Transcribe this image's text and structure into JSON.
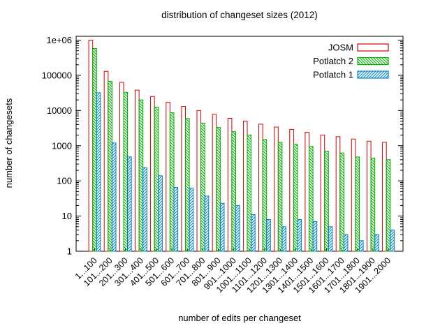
{
  "chart_data": {
    "type": "bar",
    "title": "distribution of changeset sizes (2012)",
    "xlabel": "number of edits per changeset",
    "ylabel": "number of changesets",
    "y_scale": "log",
    "ylim": [
      1,
      1000000
    ],
    "y_ticks": [
      "1",
      "10",
      "100",
      "1000",
      "10000",
      "100000",
      "1e+06"
    ],
    "grid": "off",
    "legend_position": "top-right-inside",
    "categories": [
      "1...100",
      "101...200",
      "201...300",
      "301...400",
      "401...500",
      "501...600",
      "601...700",
      "701...800",
      "801...900",
      "901...1000",
      "1001...1100",
      "1101...1200",
      "1201...1300",
      "1301...1400",
      "1401...1500",
      "1501...1600",
      "1601...1700",
      "1701...1800",
      "1801...1900",
      "1901...2000"
    ],
    "series": [
      {
        "name": "JOSM",
        "color": "#dd0000",
        "fill": "open",
        "hatch": "none",
        "values": [
          1000000,
          130000,
          63000,
          38000,
          25000,
          17000,
          13000,
          10000,
          7800,
          6000,
          5000,
          4100,
          3400,
          2900,
          2400,
          2000,
          1800,
          1550,
          1350,
          1250
        ]
      },
      {
        "name": "Potlatch 2",
        "color": "#00b000",
        "fill": "hatched",
        "hatch": "backslash",
        "values": [
          580000,
          68000,
          33000,
          20000,
          12500,
          8700,
          5900,
          4400,
          3300,
          2500,
          2000,
          1500,
          1250,
          1100,
          950,
          700,
          620,
          480,
          440,
          400
        ]
      },
      {
        "name": "Potlatch 1",
        "color": "#0084c8",
        "fill": "hatched",
        "hatch": "slash",
        "values": [
          32000,
          1200,
          480,
          240,
          140,
          65,
          62,
          37,
          23,
          20,
          11,
          8,
          5,
          8,
          7,
          5,
          3,
          2,
          3,
          4
        ]
      }
    ]
  }
}
